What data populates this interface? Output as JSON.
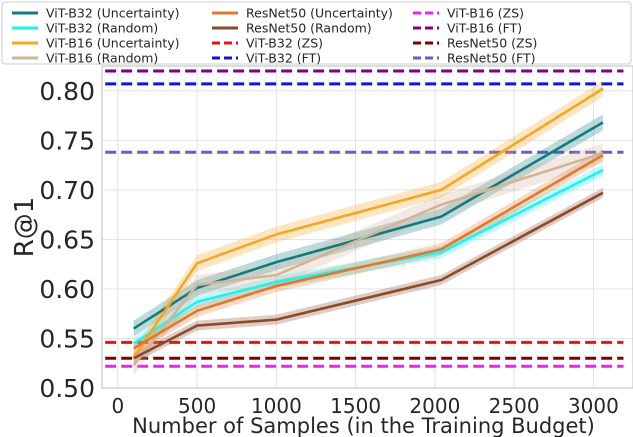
{
  "chart_data": {
    "type": "line",
    "xlabel": "Number of Samples (in the Training Budget)",
    "ylabel": "R@1",
    "xlim": [
      -100,
      3250
    ],
    "ylim": [
      0.5,
      0.825
    ],
    "xticks": [
      0,
      500,
      1000,
      1500,
      2000,
      2500,
      3000
    ],
    "yticks": [
      0.5,
      0.55,
      0.6,
      0.65,
      0.7,
      0.75,
      0.8
    ],
    "xtick_labels": [
      "0",
      "500",
      "1000",
      "1500",
      "2000",
      "2500",
      "3000"
    ],
    "ytick_labels": [
      "0.50",
      "0.55",
      "0.60",
      "0.65",
      "0.70",
      "0.75",
      "0.80"
    ],
    "grid": true,
    "legend_position": "top (above plot), 3 columns",
    "x": [
      100,
      500,
      1000,
      2040,
      3060
    ],
    "series": [
      {
        "name": "ViT-B32 (Uncertainty)",
        "color": "#137a7f",
        "style": "solid",
        "values": [
          0.56,
          0.601,
          0.627,
          0.673,
          0.768
        ],
        "band": 0.008
      },
      {
        "name": "ViT-B32 (Random)",
        "color": "#23f0f0",
        "style": "solid",
        "values": [
          0.545,
          0.587,
          0.607,
          0.637,
          0.72
        ],
        "band": 0.006
      },
      {
        "name": "ViT-B16 (Uncertainty)",
        "color": "#f5a623",
        "style": "solid",
        "values": [
          0.531,
          0.626,
          0.655,
          0.7,
          0.802
        ],
        "band": 0.008
      },
      {
        "name": "ViT-B16 (Random)",
        "color": "#d2b496",
        "style": "solid",
        "values": [
          0.523,
          0.604,
          0.614,
          0.685,
          0.737
        ],
        "band": 0.01
      },
      {
        "name": "ResNet50 (Uncertainty)",
        "color": "#e1782d",
        "style": "solid",
        "values": [
          0.54,
          0.578,
          0.603,
          0.64,
          0.735
        ],
        "band": 0.006
      },
      {
        "name": "ResNet50 (Random)",
        "color": "#8b4a2b",
        "style": "solid",
        "values": [
          0.53,
          0.563,
          0.569,
          0.609,
          0.697
        ],
        "band": 0.005
      },
      {
        "name": "ViT-B32 (ZS)",
        "color": "#ee1111",
        "style": "dashed",
        "constant": 0.546
      },
      {
        "name": "ViT-B32 (FT)",
        "color": "#0b16d6",
        "style": "dashed",
        "constant": 0.807
      },
      {
        "name": "ViT-B16 (ZS)",
        "color": "#ee22ee",
        "style": "dashed",
        "constant": 0.522
      },
      {
        "name": "ViT-B16 (FT)",
        "color": "#800080",
        "style": "dashed",
        "constant": 0.82
      },
      {
        "name": "ResNet50 (ZS)",
        "color": "#7f0000",
        "style": "dashed",
        "constant": 0.53
      },
      {
        "name": "ResNet50 (FT)",
        "color": "#6a5acd",
        "style": "dashed",
        "constant": 0.738
      }
    ]
  }
}
